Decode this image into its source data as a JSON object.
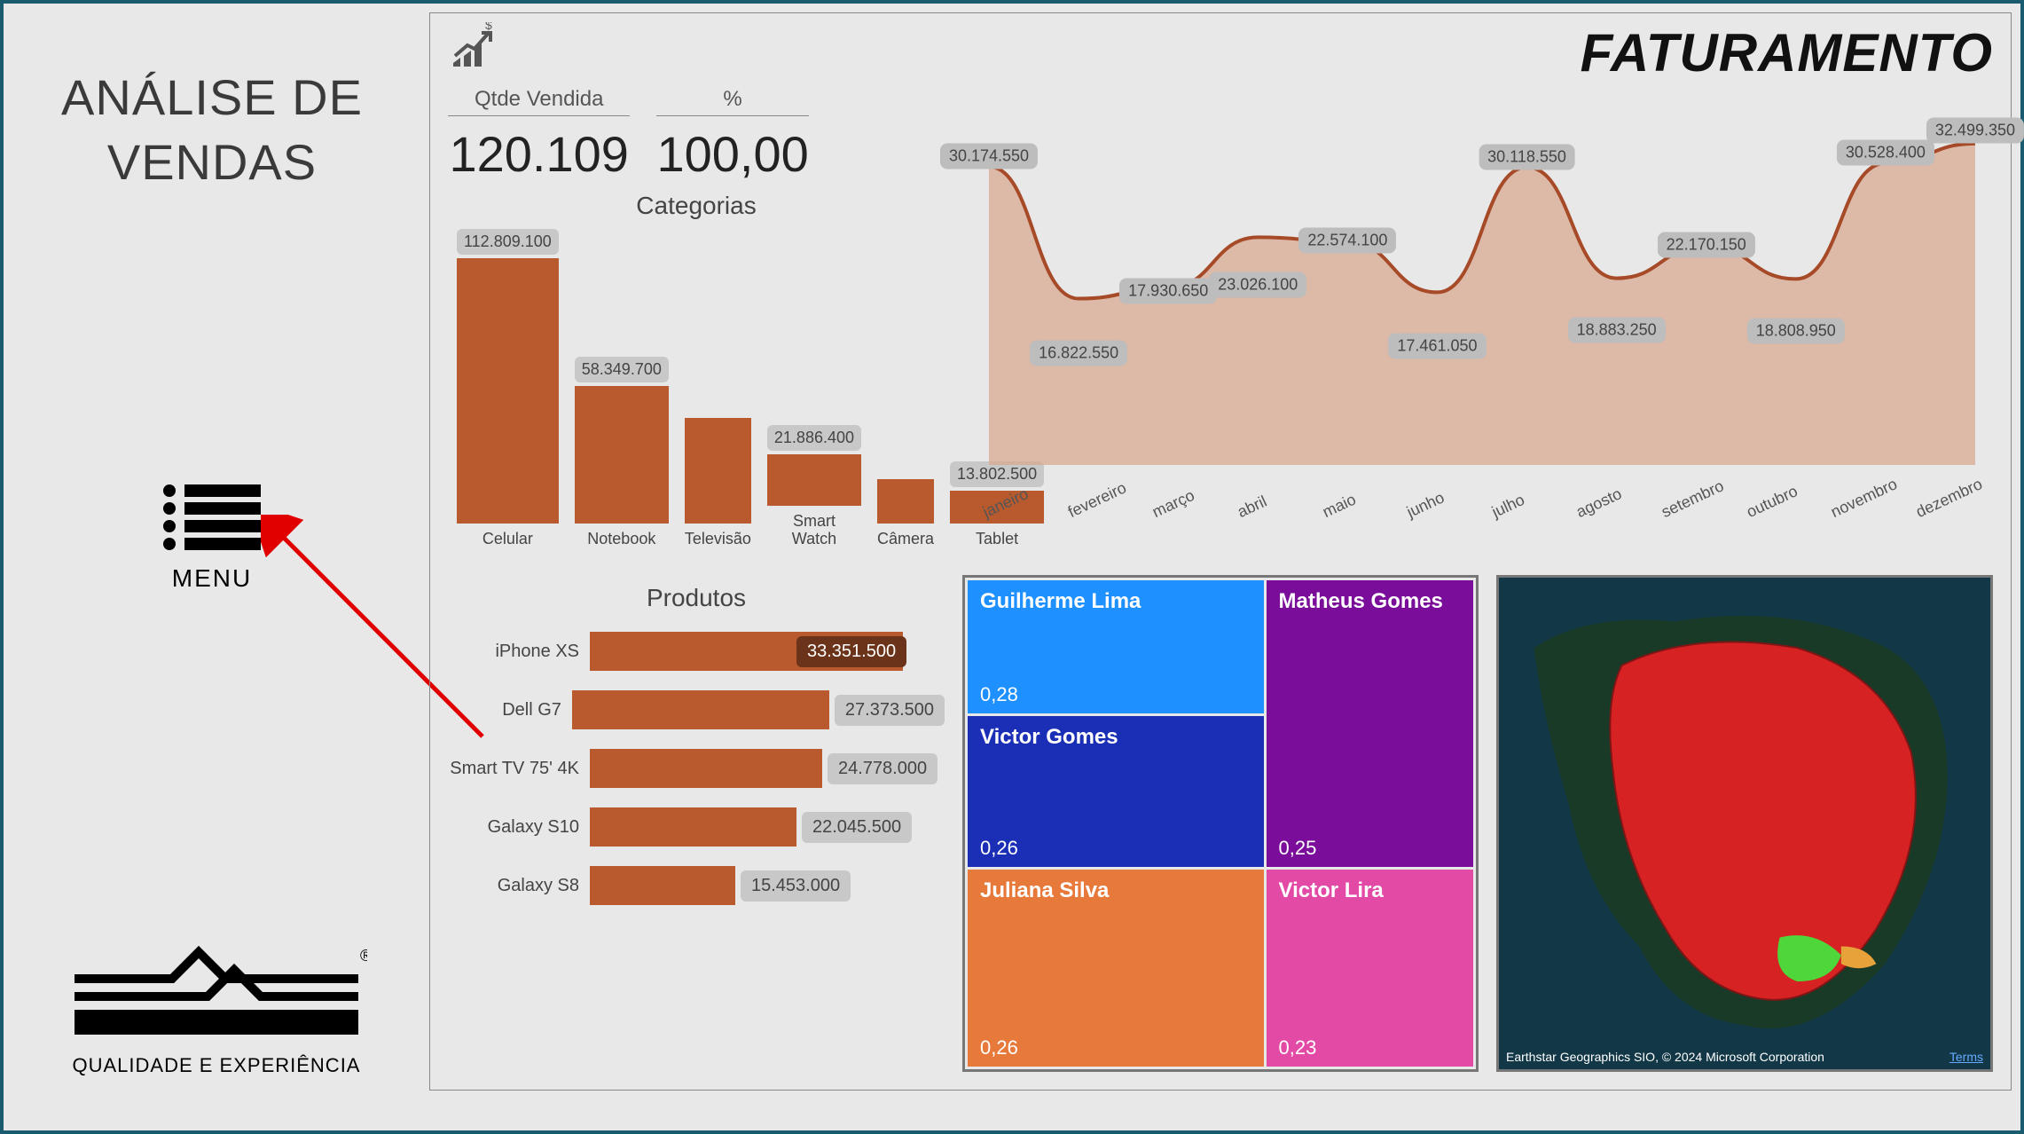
{
  "sidebar": {
    "title": "ANÁLISE DE VENDAS",
    "menu_label": "MENU",
    "logo_sub": "QUALIDADE E EXPERIÊNCIA"
  },
  "header": {
    "page_title": "FATURAMENTO"
  },
  "kpi": {
    "qtde_label": "Qtde Vendida",
    "qtde_value": "120.109",
    "pct_label": "%",
    "pct_value": "100,00"
  },
  "categorias_chart": {
    "title": "Categorias",
    "type": "bar",
    "bar_color": "#b85a2e",
    "label_bg": "#c8c8c8",
    "label_color": "#444444",
    "max_value": 113000000,
    "items": [
      {
        "name": "Celular",
        "value": 112809100,
        "label": "112.809.100"
      },
      {
        "name": "Notebook",
        "value": 58349700,
        "label": "58.349.700"
      },
      {
        "name": "Televisão",
        "value": 45000000,
        "label": ""
      },
      {
        "name": "Smart Watch",
        "value": 21886400,
        "label": "21.886.400"
      },
      {
        "name": "Câmera",
        "value": 19000000,
        "label": ""
      },
      {
        "name": "Tablet",
        "value": 13802500,
        "label": "13.802.500"
      }
    ]
  },
  "area_chart": {
    "type": "area",
    "line_color": "#a64a28",
    "fill_color": "#d9a58c",
    "fill_opacity": 0.7,
    "background": "#e8e8e8",
    "ymax": 35000000,
    "months": [
      "janeiro",
      "fevereiro",
      "março",
      "abril",
      "maio",
      "junho",
      "julho",
      "agosto",
      "setembro",
      "outubro",
      "novembro",
      "dezembro"
    ],
    "values": [
      30174550,
      16822550,
      17930650,
      23026100,
      22574100,
      17461050,
      30118550,
      18883250,
      22170150,
      18808950,
      30528400,
      32499350
    ],
    "labels": [
      "30.174.550",
      "16.822.550",
      "17.930.650",
      "23.026.100",
      "22.574.100",
      "17.461.050",
      "30.118.550",
      "18.883.250",
      "22.170.150",
      "18.808.950",
      "30.528.400",
      "32.499.350"
    ]
  },
  "produtos_chart": {
    "title": "Produtos",
    "type": "hbar",
    "bar_color": "#b85a2e",
    "max_value": 34000000,
    "items": [
      {
        "name": "iPhone XS",
        "value": 33351500,
        "label": "33.351.500",
        "inside": true
      },
      {
        "name": "Dell G7",
        "value": 27373500,
        "label": "27.373.500",
        "inside": false
      },
      {
        "name": "Smart TV 75' 4K",
        "value": 24778000,
        "label": "24.778.000",
        "inside": false
      },
      {
        "name": "Galaxy S10",
        "value": 22045500,
        "label": "22.045.500",
        "inside": false
      },
      {
        "name": "Galaxy S8",
        "value": 15453000,
        "label": "15.453.000",
        "inside": false
      }
    ]
  },
  "treemap": {
    "type": "treemap",
    "cells": [
      {
        "name": "Guilherme Lima",
        "value": "0,28",
        "color": "#1e90ff",
        "col": "1",
        "row": "1"
      },
      {
        "name": "Victor Gomes",
        "value": "0,26",
        "color": "#1a2fb5",
        "col": "1",
        "row": "2"
      },
      {
        "name": "Juliana Silva",
        "value": "0,26",
        "color": "#e77a3a",
        "col": "1",
        "row": "3"
      },
      {
        "name": "Matheus Gomes",
        "value": "0,25",
        "color": "#7a0d9a",
        "col": "2",
        "row": "1 / span 2"
      },
      {
        "name": "Victor Lira",
        "value": "0,23",
        "color": "#e34aa6",
        "col": "2",
        "row": "3"
      }
    ]
  },
  "map": {
    "attribution": "Earthstar Geographics SIO, © 2024 Microsoft Corporation",
    "terms": "Terms",
    "country_fill": "#d62222",
    "highlight_fill": "#4fd63a",
    "accent_fill": "#e8a23a",
    "ocean": "#123848",
    "land": "#1a3a28"
  },
  "arrow": {
    "color": "#e00000"
  }
}
